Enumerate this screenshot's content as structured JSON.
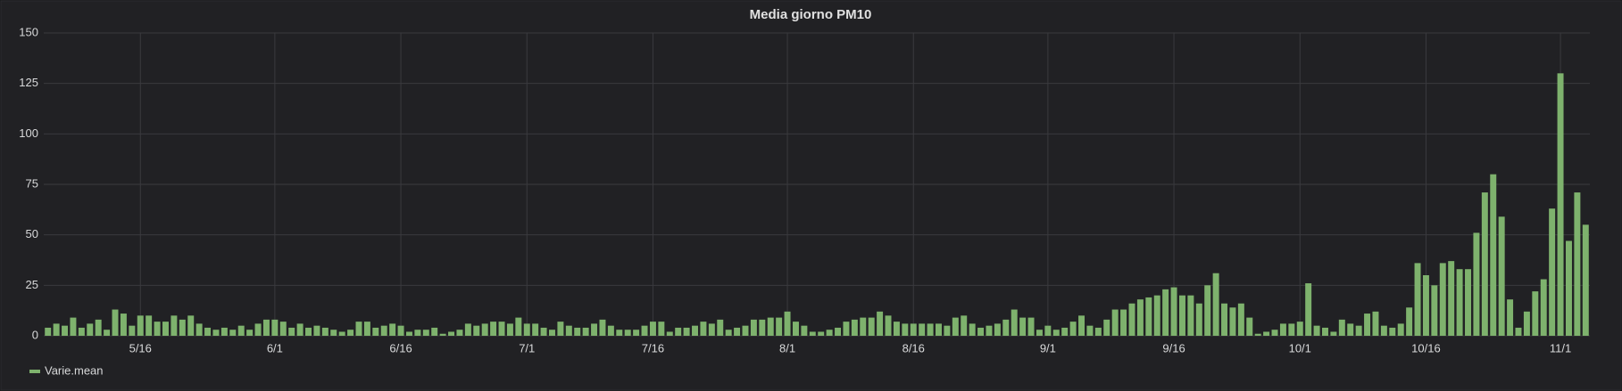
{
  "chart_data": {
    "type": "bar",
    "title": "Media giorno PM10",
    "categories": [
      null,
      null,
      null,
      null,
      null,
      null,
      null,
      null,
      null,
      null,
      null,
      "5/16",
      null,
      null,
      null,
      null,
      null,
      null,
      null,
      null,
      null,
      null,
      null,
      null,
      null,
      null,
      null,
      "6/1",
      null,
      null,
      null,
      null,
      null,
      null,
      null,
      null,
      null,
      null,
      null,
      null,
      null,
      null,
      "6/16",
      null,
      null,
      null,
      null,
      null,
      null,
      null,
      null,
      null,
      null,
      null,
      null,
      null,
      null,
      "7/1",
      null,
      null,
      null,
      null,
      null,
      null,
      null,
      null,
      null,
      null,
      null,
      null,
      null,
      null,
      "7/16",
      null,
      null,
      null,
      null,
      null,
      null,
      null,
      null,
      null,
      null,
      null,
      null,
      null,
      null,
      null,
      "8/1",
      null,
      null,
      null,
      null,
      null,
      null,
      null,
      null,
      null,
      null,
      null,
      null,
      null,
      null,
      "8/16",
      null,
      null,
      null,
      null,
      null,
      null,
      null,
      null,
      null,
      null,
      null,
      null,
      null,
      null,
      null,
      "9/1",
      null,
      null,
      null,
      null,
      null,
      null,
      null,
      null,
      null,
      null,
      null,
      null,
      null,
      null,
      "9/16",
      null,
      null,
      null,
      null,
      null,
      null,
      null,
      null,
      null,
      null,
      null,
      null,
      null,
      null,
      "10/1",
      null,
      null,
      null,
      null,
      null,
      null,
      null,
      null,
      null,
      null,
      null,
      null,
      null,
      null,
      "10/16",
      null,
      null,
      null,
      null,
      null,
      null,
      null,
      null,
      null,
      null,
      null,
      null,
      null,
      null,
      null,
      "11/1",
      null,
      null,
      null
    ],
    "series": [
      {
        "name": "Varie.mean",
        "color": "#7eb26d",
        "values": [
          4,
          6,
          5,
          9,
          4,
          6,
          8,
          3,
          13,
          11,
          5,
          10,
          10,
          7,
          7,
          10,
          8,
          10,
          6,
          4,
          3,
          4,
          3,
          5,
          3,
          6,
          8,
          8,
          7,
          4,
          6,
          4,
          5,
          4,
          3,
          2,
          3,
          7,
          7,
          4,
          5,
          6,
          5,
          2,
          3,
          3,
          4,
          1,
          2,
          3,
          6,
          5,
          6,
          7,
          7,
          6,
          9,
          6,
          6,
          4,
          3,
          7,
          5,
          4,
          4,
          6,
          8,
          5,
          3,
          3,
          3,
          5,
          7,
          7,
          2,
          4,
          4,
          5,
          7,
          6,
          8,
          3,
          4,
          5,
          8,
          8,
          9,
          9,
          12,
          7,
          5,
          2,
          2,
          3,
          4,
          7,
          8,
          9,
          9,
          12,
          10,
          7,
          6,
          6,
          6,
          6,
          6,
          5,
          9,
          10,
          6,
          4,
          5,
          6,
          8,
          13,
          9,
          9,
          3,
          5,
          3,
          4,
          7,
          10,
          5,
          4,
          8,
          13,
          13,
          16,
          18,
          19,
          20,
          23,
          24,
          20,
          20,
          16,
          25,
          31,
          16,
          14,
          16,
          9,
          1,
          2,
          3,
          6,
          6,
          7,
          26,
          5,
          4,
          2,
          8,
          6,
          5,
          11,
          12,
          5,
          4,
          6,
          14,
          36,
          30,
          25,
          36,
          37,
          33,
          33,
          51,
          71,
          80,
          59,
          18,
          4,
          12,
          22,
          28,
          63,
          130,
          47,
          71,
          55
        ]
      }
    ],
    "ylim": [
      0,
      150
    ],
    "yticks": [
      0,
      25,
      50,
      75,
      100,
      125,
      150
    ],
    "grid": true,
    "legend": "bottom-left"
  }
}
